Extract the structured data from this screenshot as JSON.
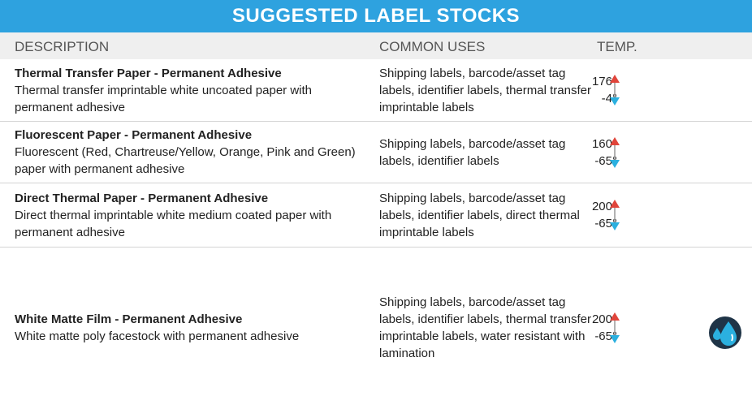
{
  "header": {
    "title": "SUGGESTED LABEL STOCKS"
  },
  "columns": [
    "DESCRIPTION",
    "COMMON USES",
    "TEMP."
  ],
  "rows": [
    {
      "title": "Thermal Transfer Paper - Permanent Adhesive",
      "description": "Thermal transfer imprintable white uncoated paper with permanent adhesive",
      "uses": "Shipping labels, barcode/asset tag labels, identifier labels, thermal transfer imprintable labels",
      "temp_high": "176°",
      "temp_low": "-4°"
    },
    {
      "title": "Fluorescent Paper - Permanent Adhesive",
      "description": "Fluorescent (Red, Chartreuse/Yellow, Orange, Pink and Green) paper with permanent adhesive",
      "uses": "Shipping labels, barcode/asset tag labels, identifier labels",
      "temp_high": "160°",
      "temp_low": "-65°"
    },
    {
      "title": "Direct Thermal Paper - Permanent Adhesive",
      "description": "Direct thermal imprintable white medium coated paper with permanent adhesive",
      "uses": "Shipping labels, barcode/asset tag labels, identifier labels, direct thermal imprintable labels",
      "temp_high": "200°",
      "temp_low": "-65°"
    },
    {
      "title": "White Matte Film - Permanent Adhesive",
      "description": "White matte poly facestock with permanent adhesive",
      "uses": "Shipping labels, barcode/asset tag labels, identifier labels, thermal transfer imprintable labels, water resistant with lamination",
      "temp_high": "200°",
      "temp_low": "-65°"
    }
  ]
}
